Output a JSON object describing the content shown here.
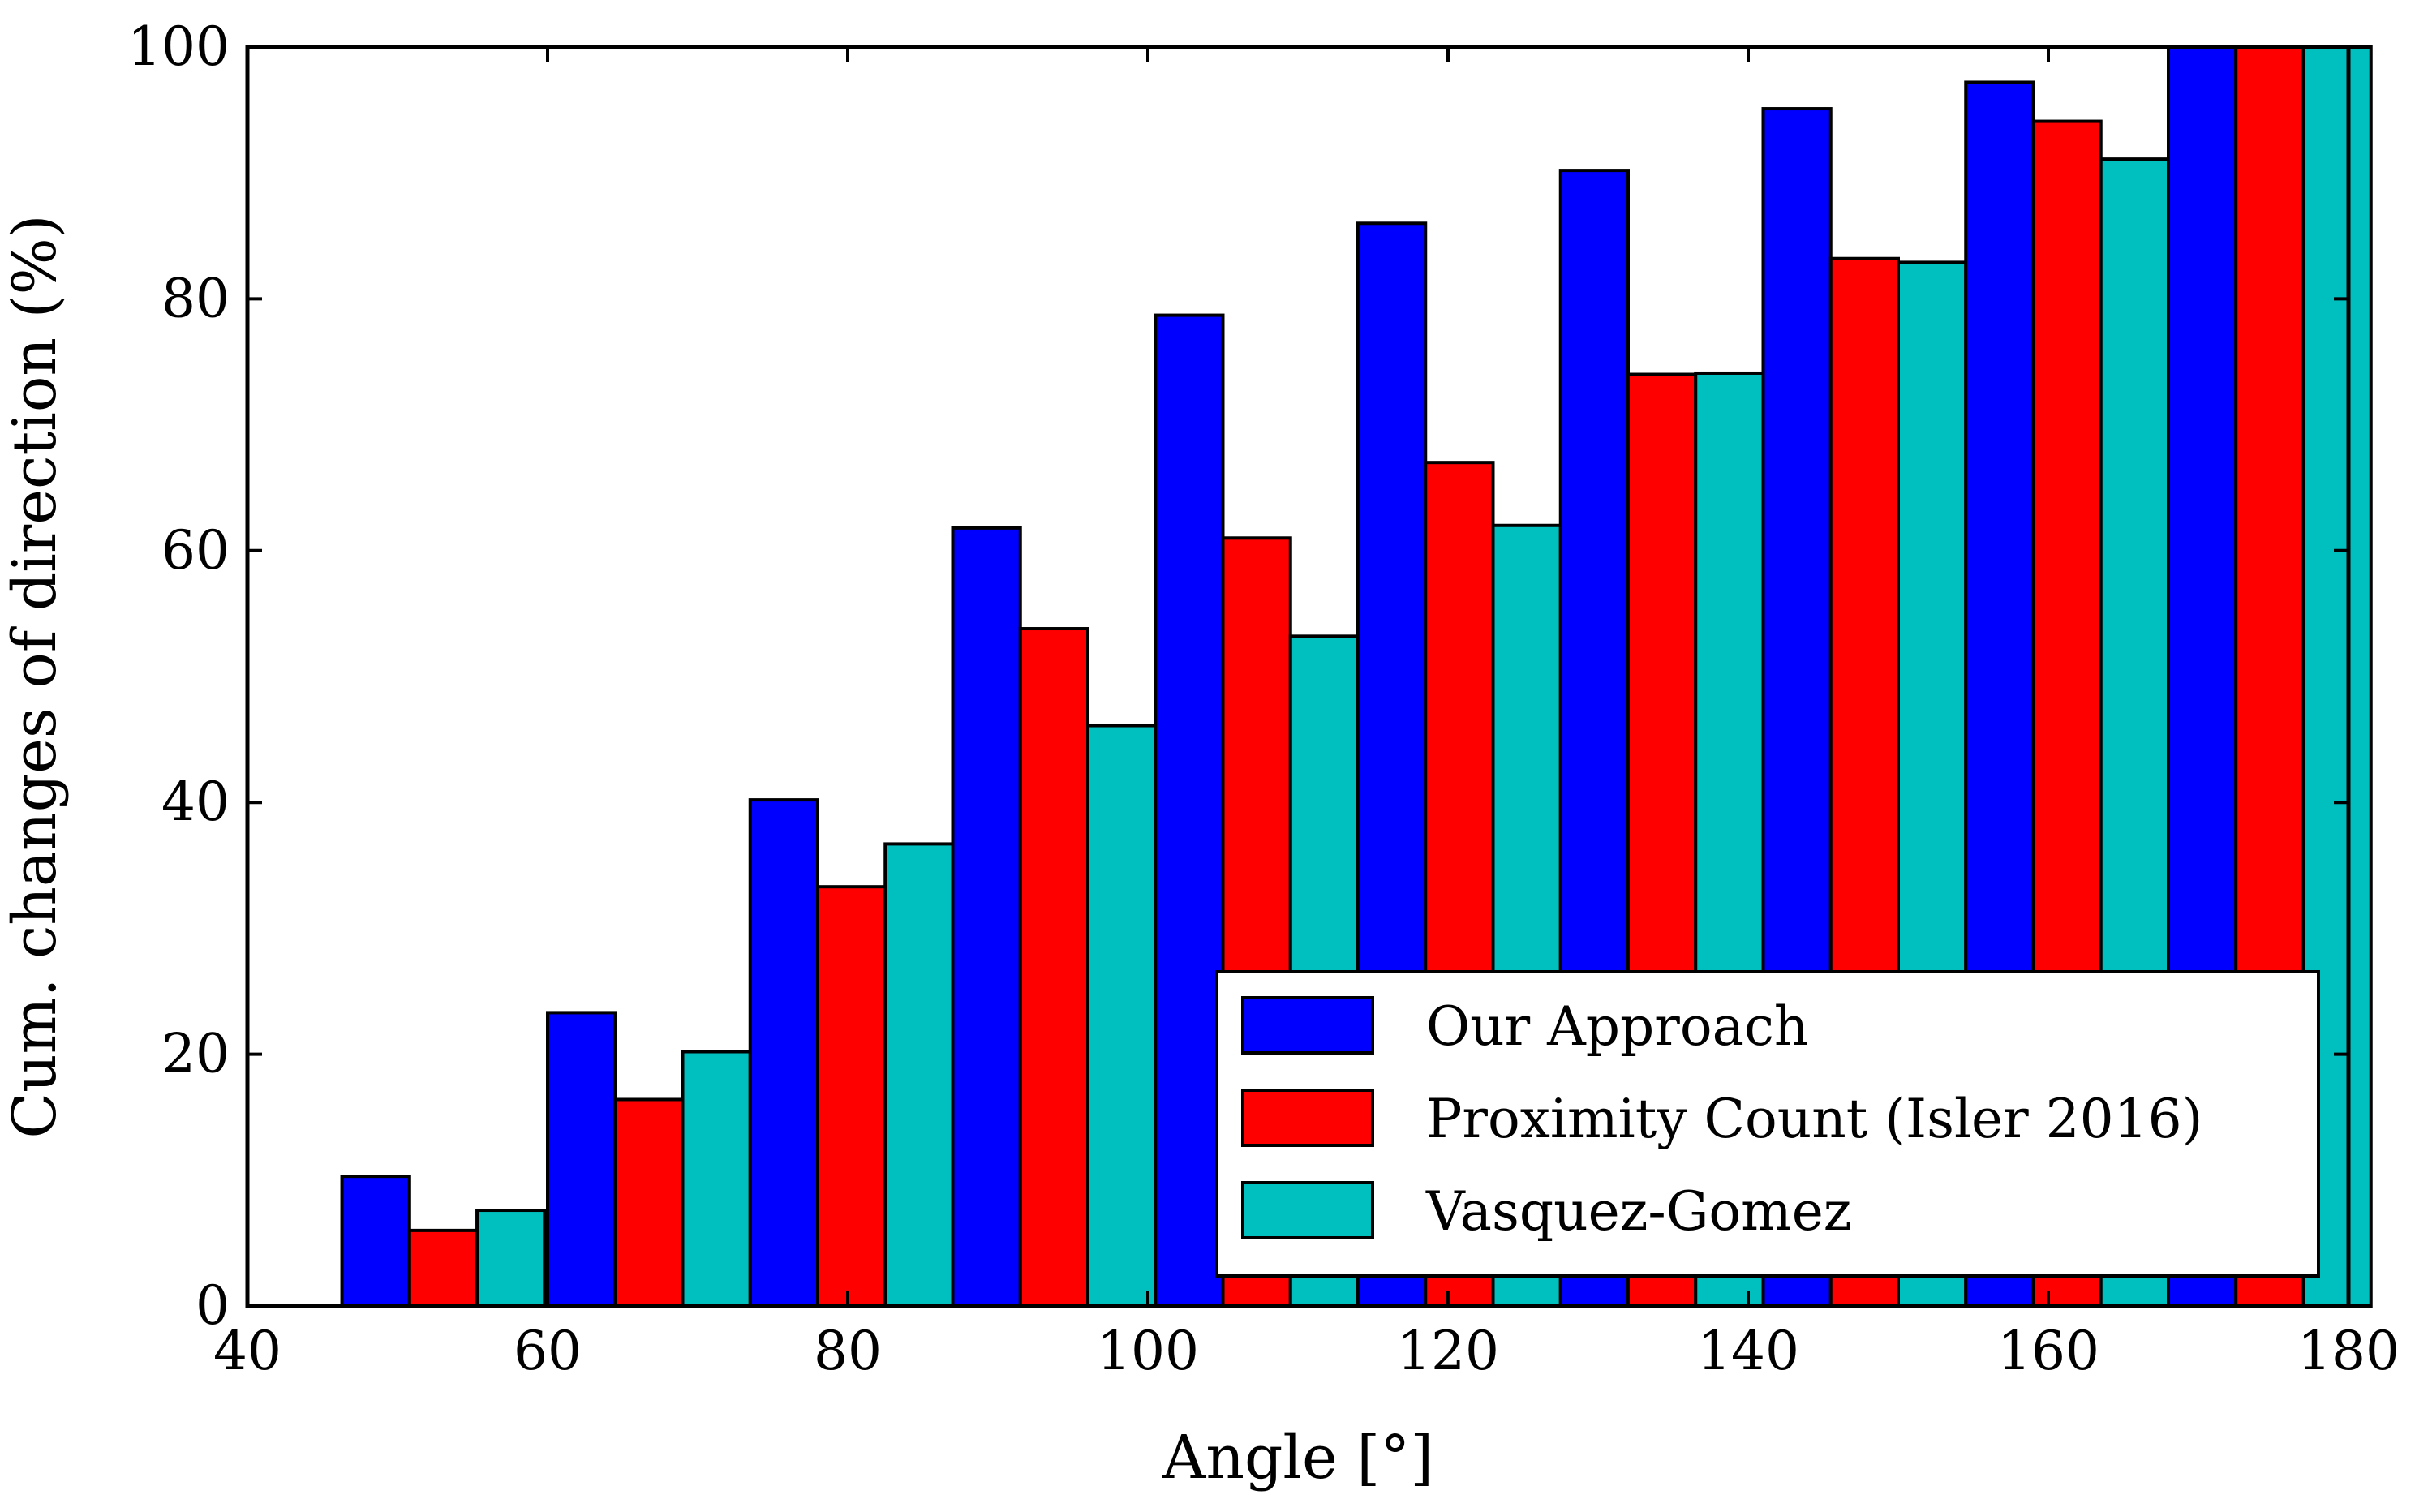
{
  "chart_data": {
    "type": "bar",
    "title": "",
    "xlabel": "Angle [°]",
    "ylabel": "Cum. changes of direction (%)",
    "xlim": [
      40,
      180
    ],
    "ylim": [
      0,
      100
    ],
    "xticks": [
      "40",
      "60",
      "80",
      "100",
      "120",
      "140",
      "160",
      "180"
    ],
    "yticks": [
      "0",
      "20",
      "40",
      "60",
      "80",
      "100"
    ],
    "bin_starts": [
      46.3,
      60.0,
      73.5,
      87.0,
      100.5,
      114.0,
      127.5,
      141.0,
      154.5,
      168.0
    ],
    "bin_width": 13.5,
    "legend_position": "lower-right",
    "series": [
      {
        "name": "Our Approach",
        "color": "#0000ff",
        "values": [
          10.3,
          23.3,
          40.2,
          61.8,
          78.7,
          86.0,
          90.2,
          95.1,
          97.2,
          100
        ]
      },
      {
        "name": "Proximity Count (Isler 2016)",
        "color": "#ff0000",
        "values": [
          6.0,
          16.4,
          33.3,
          53.8,
          61.0,
          67.0,
          74.0,
          83.2,
          94.1,
          100
        ]
      },
      {
        "name": "Vasquez-Gomez",
        "color": "#00bfbf",
        "values": [
          7.6,
          20.2,
          36.7,
          46.1,
          53.2,
          62.0,
          74.1,
          82.9,
          91.1,
          100
        ]
      }
    ]
  }
}
